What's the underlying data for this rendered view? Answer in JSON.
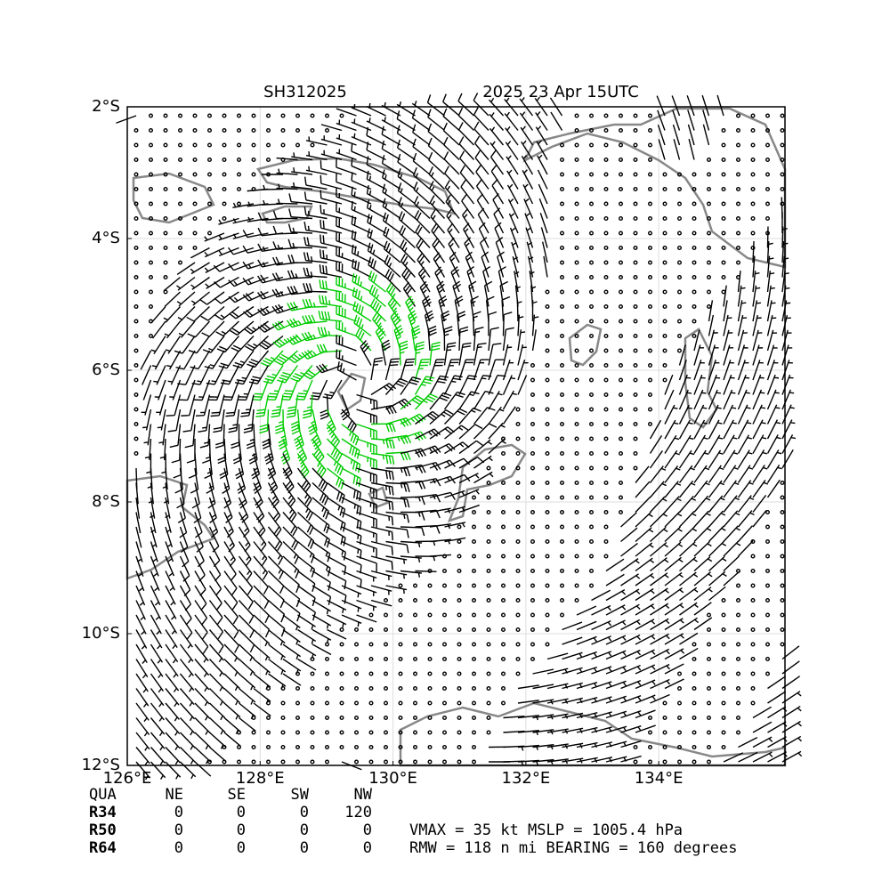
{
  "chart_data": {
    "type": "wind-barb-map",
    "title": "SH312025",
    "subtitle": "2025 23 Apr 15UTC",
    "xlim": [
      126,
      135.9
    ],
    "ylim": [
      -12,
      -2
    ],
    "xticks": [
      {
        "value": 126,
        "label": "126°E"
      },
      {
        "value": 128,
        "label": "128°E"
      },
      {
        "value": 130,
        "label": "130°E"
      },
      {
        "value": 132,
        "label": "132°E"
      },
      {
        "value": 134,
        "label": "134°E"
      }
    ],
    "yticks": [
      {
        "value": -2,
        "label": "2°S"
      },
      {
        "value": -4,
        "label": "4°S"
      },
      {
        "value": -6,
        "label": "6°S"
      },
      {
        "value": -8,
        "label": "8°S"
      },
      {
        "value": -10,
        "label": "10°S"
      },
      {
        "value": -12,
        "label": "12°S"
      }
    ],
    "grid": true,
    "table": {
      "header": [
        "QUA",
        "NE",
        "SE",
        "SW",
        "NW"
      ],
      "rows": [
        [
          "R34",
          "0",
          "0",
          "0",
          "120"
        ],
        [
          "R50",
          "0",
          "0",
          "0",
          "0"
        ],
        [
          "R64",
          "0",
          "0",
          "0",
          "0"
        ]
      ]
    },
    "info": [
      "VMAX =  35 kt MSLP = 1005.4 hPa",
      "RMW = 118 n mi BEARING = 160 degrees"
    ]
  }
}
